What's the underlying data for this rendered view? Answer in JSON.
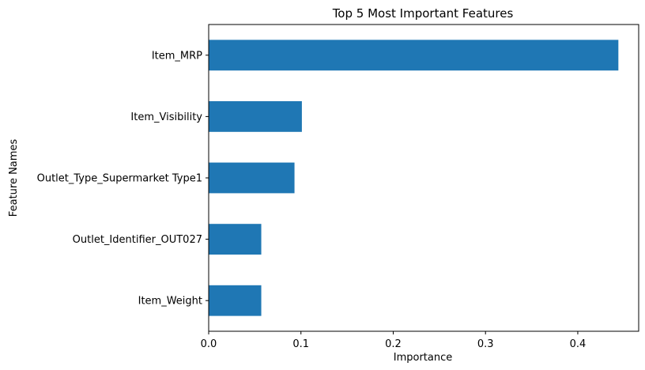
{
  "chart_data": {
    "type": "bar",
    "orientation": "horizontal",
    "title": "Top 5 Most Important Features",
    "xlabel": "Importance",
    "ylabel": "Feature Names",
    "categories": [
      "Item_MRP",
      "Item_Visibility",
      "Outlet_Type_Supermarket Type1",
      "Outlet_Identifier_OUT027",
      "Item_Weight"
    ],
    "values": [
      0.444,
      0.101,
      0.093,
      0.057,
      0.057
    ],
    "xlim": [
      0,
      0.466
    ],
    "xticks": [
      0.0,
      0.1,
      0.2,
      0.3,
      0.4
    ],
    "xtick_labels": [
      "0.0",
      "0.1",
      "0.2",
      "0.3",
      "0.4"
    ],
    "bar_color": "#1f77b4",
    "grid": false,
    "legend": false
  }
}
